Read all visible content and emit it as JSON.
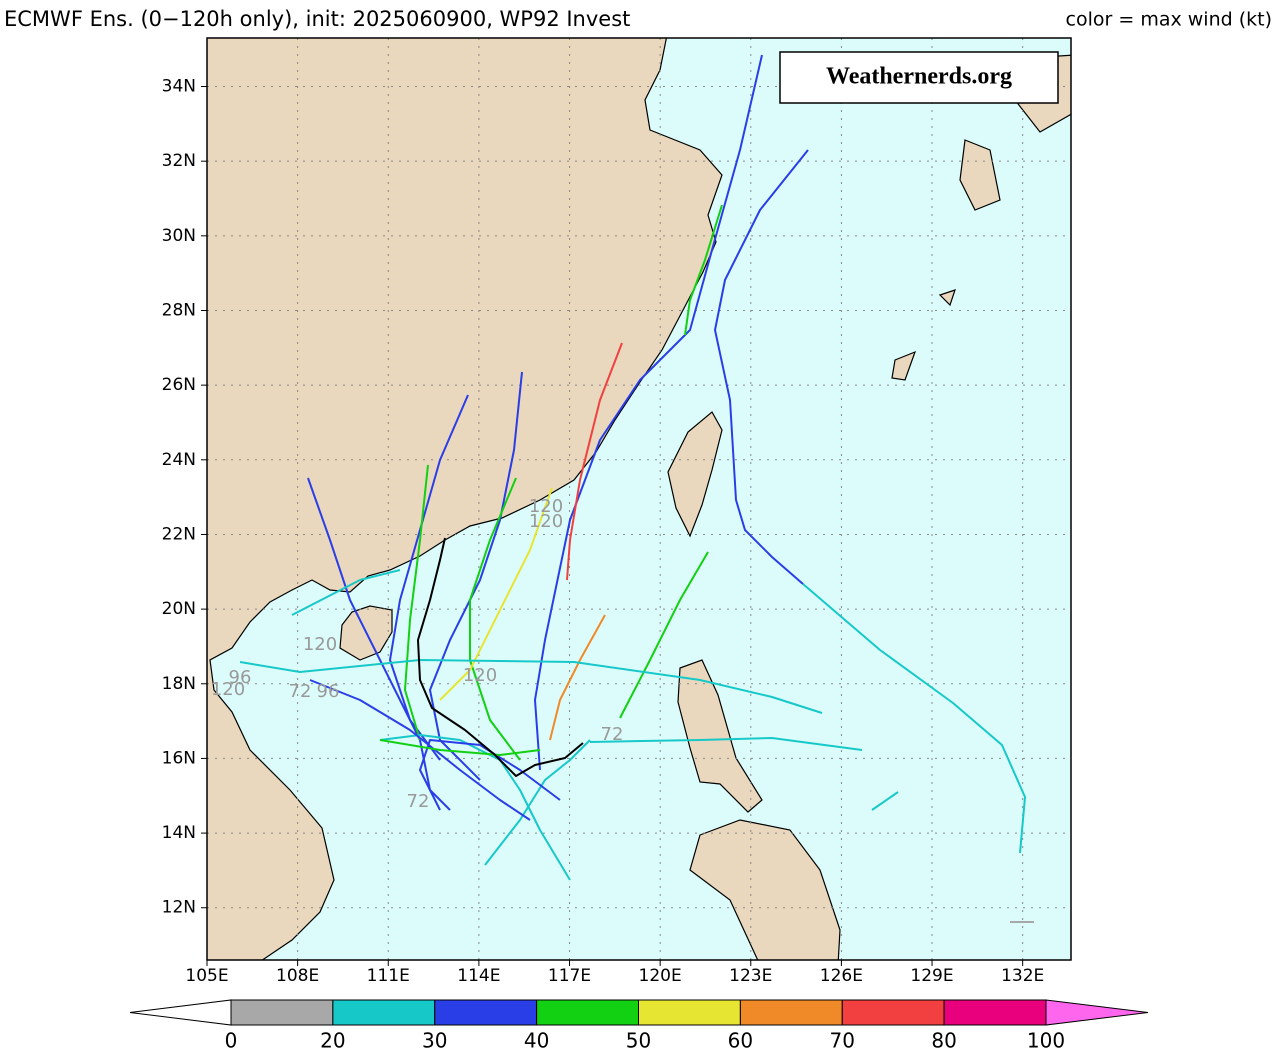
{
  "chart_data": {
    "type": "track-map",
    "title": "ECMWF Ens. (0−120h only), init: 2025060900, WP92 Invest",
    "subtitle": "color = max wind (kt)",
    "watermark": "Weathernerds.org",
    "xlim": [
      105,
      133.6
    ],
    "ylim": [
      10.6,
      35.3
    ],
    "xticks": [
      {
        "value": 105,
        "label": "105E"
      },
      {
        "value": 108,
        "label": "108E"
      },
      {
        "value": 111,
        "label": "111E"
      },
      {
        "value": 114,
        "label": "114E"
      },
      {
        "value": 117,
        "label": "117E"
      },
      {
        "value": 120,
        "label": "120E"
      },
      {
        "value": 123,
        "label": "123E"
      },
      {
        "value": 126,
        "label": "126E"
      },
      {
        "value": 129,
        "label": "129E"
      },
      {
        "value": 132,
        "label": "132E"
      }
    ],
    "yticks": [
      {
        "value": 12,
        "label": "12N"
      },
      {
        "value": 14,
        "label": "14N"
      },
      {
        "value": 16,
        "label": "16N"
      },
      {
        "value": 18,
        "label": "18N"
      },
      {
        "value": 20,
        "label": "20N"
      },
      {
        "value": 22,
        "label": "22N"
      },
      {
        "value": 24,
        "label": "24N"
      },
      {
        "value": 26,
        "label": "26N"
      },
      {
        "value": 28,
        "label": "28N"
      },
      {
        "value": 30,
        "label": "30N"
      },
      {
        "value": 32,
        "label": "32N"
      },
      {
        "value": 34,
        "label": "34N"
      }
    ],
    "grid": true,
    "colorbar": {
      "levels": [
        0,
        20,
        30,
        40,
        50,
        60,
        70,
        80,
        100
      ],
      "labels": [
        "0",
        "20",
        "30",
        "40",
        "50",
        "60",
        "70",
        "80",
        "100"
      ],
      "colors": [
        "#a8a8a8",
        "#17c8c8",
        "#2a3ee8",
        "#12d012",
        "#e6e632",
        "#f08a28",
        "#f24040",
        "#e8007c"
      ],
      "under_color": "#ffffff",
      "over_color": "#ff66ee"
    },
    "annotations": [
      "120",
      "120",
      "120",
      "120",
      "96",
      "72",
      "96",
      "120",
      "72",
      "72"
    ]
  }
}
